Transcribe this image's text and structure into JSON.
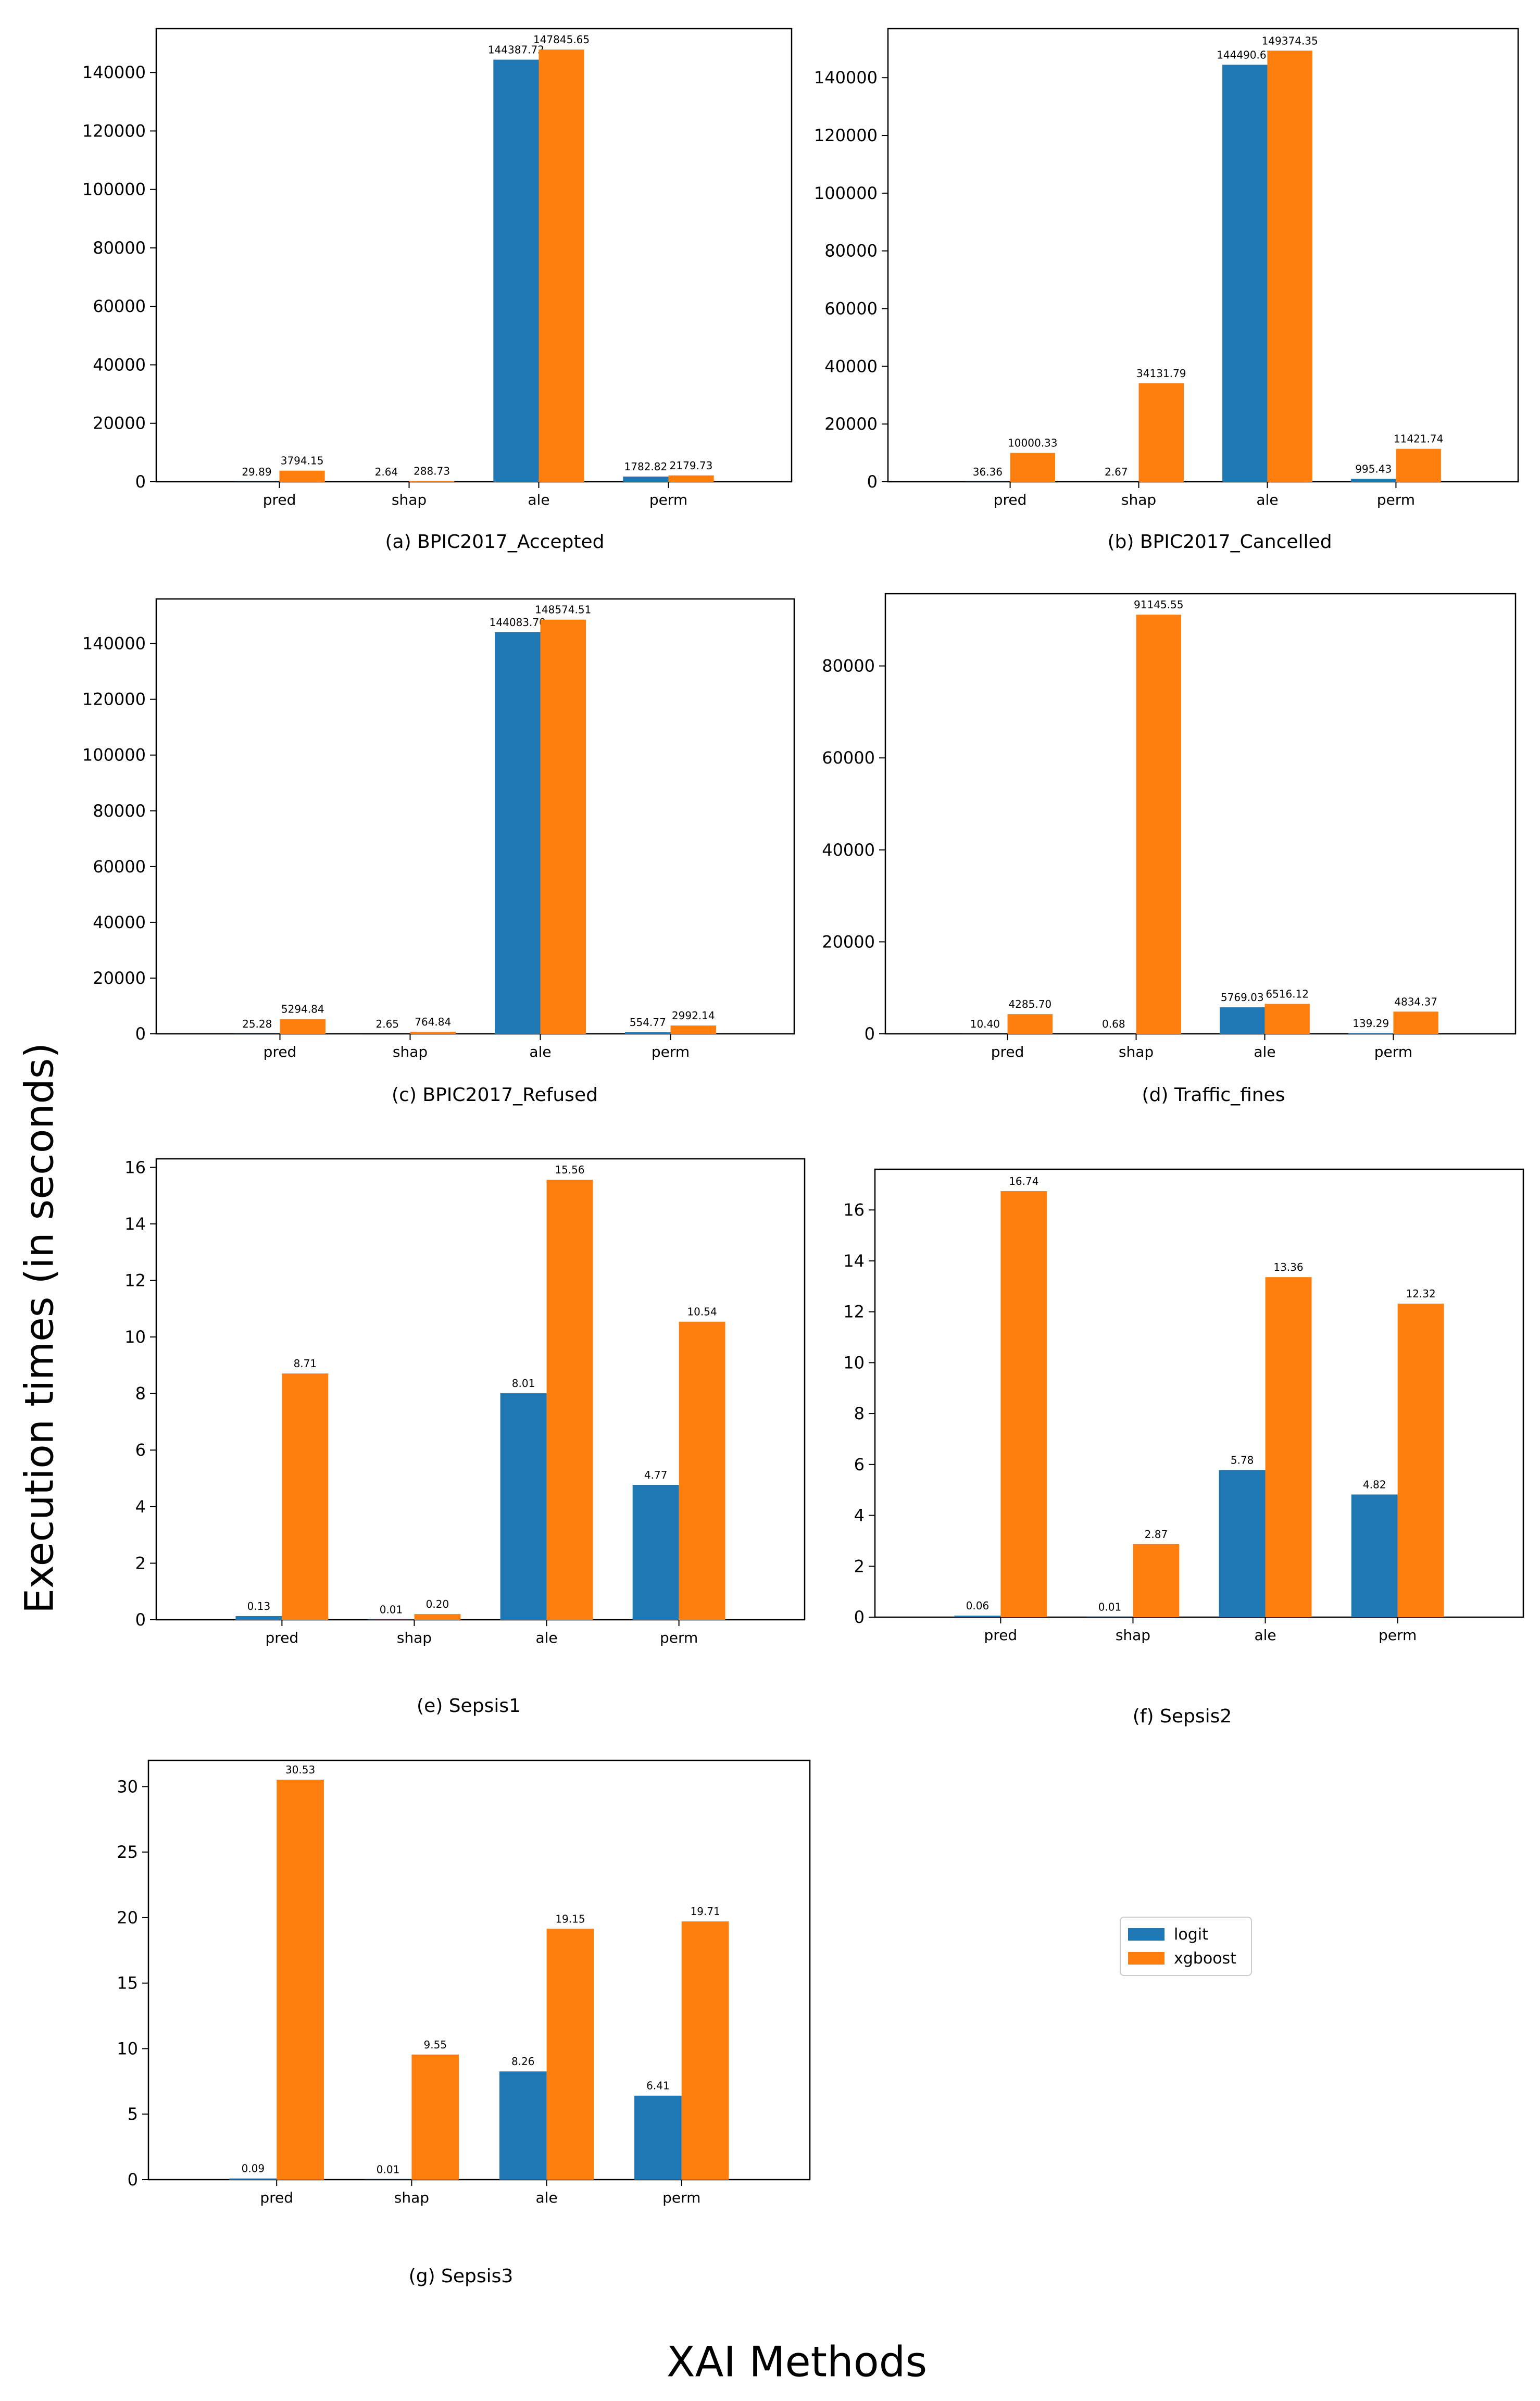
{
  "colors": {
    "logit": "#1f77b4",
    "xgboost": "#ff7f0e"
  },
  "figure": {
    "ylabel": "Execution times (in seconds)",
    "xlabel": "XAI Methods"
  },
  "legend": {
    "placement": "center-right of last row",
    "items": [
      {
        "label": "logit",
        "color": "#1f77b4"
      },
      {
        "label": "xgboost",
        "color": "#ff7f0e"
      }
    ]
  },
  "chart_data": [
    {
      "type": "bar",
      "caption": "(a) BPIC2017_Accepted",
      "categories": [
        "pred",
        "shap",
        "ale",
        "perm"
      ],
      "ylim": [
        0,
        155000
      ],
      "yticks": [
        0,
        20000,
        40000,
        60000,
        80000,
        100000,
        120000,
        140000
      ],
      "series": [
        {
          "name": "logit",
          "values": [
            29.89,
            2.64,
            144387.72,
            1782.82
          ],
          "labels": [
            "29.89",
            "2.64",
            "144387.72",
            "1782.82"
          ]
        },
        {
          "name": "xgboost",
          "values": [
            3794.15,
            288.73,
            147845.65,
            2179.73
          ],
          "labels": [
            "3794.15",
            "288.73",
            "147845.65",
            "2179.73"
          ]
        }
      ]
    },
    {
      "type": "bar",
      "caption": "(b) BPIC2017_Cancelled",
      "categories": [
        "pred",
        "shap",
        "ale",
        "perm"
      ],
      "ylim": [
        0,
        157000
      ],
      "yticks": [
        0,
        20000,
        40000,
        60000,
        80000,
        100000,
        120000,
        140000
      ],
      "series": [
        {
          "name": "logit",
          "values": [
            36.36,
            2.67,
            144490.67,
            995.43
          ],
          "labels": [
            "36.36",
            "2.67",
            "144490.67",
            "995.43"
          ]
        },
        {
          "name": "xgboost",
          "values": [
            10000.33,
            34131.79,
            149374.35,
            11421.74
          ],
          "labels": [
            "10000.33",
            "34131.79",
            "149374.35",
            "11421.74"
          ]
        }
      ]
    },
    {
      "type": "bar",
      "caption": "(c) BPIC2017_Refused",
      "categories": [
        "pred",
        "shap",
        "ale",
        "perm"
      ],
      "ylim": [
        0,
        156000
      ],
      "yticks": [
        0,
        20000,
        40000,
        60000,
        80000,
        100000,
        120000,
        140000
      ],
      "series": [
        {
          "name": "logit",
          "values": [
            25.28,
            2.65,
            144083.7,
            554.77
          ],
          "labels": [
            "25.28",
            "2.65",
            "144083.70",
            "554.77"
          ]
        },
        {
          "name": "xgboost",
          "values": [
            5294.84,
            764.84,
            148574.51,
            2992.14
          ],
          "labels": [
            "5294.84",
            "764.84",
            "148574.51",
            "2992.14"
          ]
        }
      ]
    },
    {
      "type": "bar",
      "caption": "(d) Traffic_fines",
      "categories": [
        "pred",
        "shap",
        "ale",
        "perm"
      ],
      "ylim": [
        0,
        95700
      ],
      "yticks": [
        0,
        20000,
        40000,
        60000,
        80000
      ],
      "series": [
        {
          "name": "logit",
          "values": [
            10.4,
            0.68,
            5769.03,
            139.29
          ],
          "labels": [
            "10.40",
            "0.68",
            "5769.03",
            "139.29"
          ]
        },
        {
          "name": "xgboost",
          "values": [
            4285.7,
            91145.55,
            6516.12,
            4834.37
          ],
          "labels": [
            "4285.70",
            "91145.55",
            "6516.12",
            "4834.37"
          ]
        }
      ]
    },
    {
      "type": "bar",
      "caption": "(e) Sepsis1",
      "categories": [
        "pred",
        "shap",
        "ale",
        "perm"
      ],
      "ylim": [
        0,
        16.3
      ],
      "yticks": [
        0,
        2,
        4,
        6,
        8,
        10,
        12,
        14,
        16
      ],
      "series": [
        {
          "name": "logit",
          "values": [
            0.13,
            0.01,
            8.01,
            4.77
          ],
          "labels": [
            "0.13",
            "0.01",
            "8.01",
            "4.77"
          ]
        },
        {
          "name": "xgboost",
          "values": [
            8.71,
            0.2,
            15.56,
            10.54
          ],
          "labels": [
            "8.71",
            "0.20",
            "15.56",
            "10.54"
          ]
        }
      ]
    },
    {
      "type": "bar",
      "caption": "(f) Sepsis2",
      "categories": [
        "pred",
        "shap",
        "ale",
        "perm"
      ],
      "ylim": [
        0,
        17.6
      ],
      "yticks": [
        0,
        2,
        4,
        6,
        8,
        10,
        12,
        14,
        16
      ],
      "series": [
        {
          "name": "logit",
          "values": [
            0.06,
            0.01,
            5.78,
            4.82
          ],
          "labels": [
            "0.06",
            "0.01",
            "5.78",
            "4.82"
          ]
        },
        {
          "name": "xgboost",
          "values": [
            16.74,
            2.87,
            13.36,
            12.32
          ],
          "labels": [
            "16.74",
            "2.87",
            "13.36",
            "12.32"
          ]
        }
      ]
    },
    {
      "type": "bar",
      "caption": "(g) Sepsis3",
      "categories": [
        "pred",
        "shap",
        "ale",
        "perm"
      ],
      "ylim": [
        0,
        32
      ],
      "yticks": [
        0,
        5,
        10,
        15,
        20,
        25,
        30
      ],
      "series": [
        {
          "name": "logit",
          "values": [
            0.09,
            0.01,
            8.26,
            6.41
          ],
          "labels": [
            "0.09",
            "0.01",
            "8.26",
            "6.41"
          ]
        },
        {
          "name": "xgboost",
          "values": [
            30.53,
            9.55,
            19.15,
            19.71
          ],
          "labels": [
            "30.53",
            "9.55",
            "19.15",
            "19.71"
          ]
        }
      ]
    }
  ]
}
